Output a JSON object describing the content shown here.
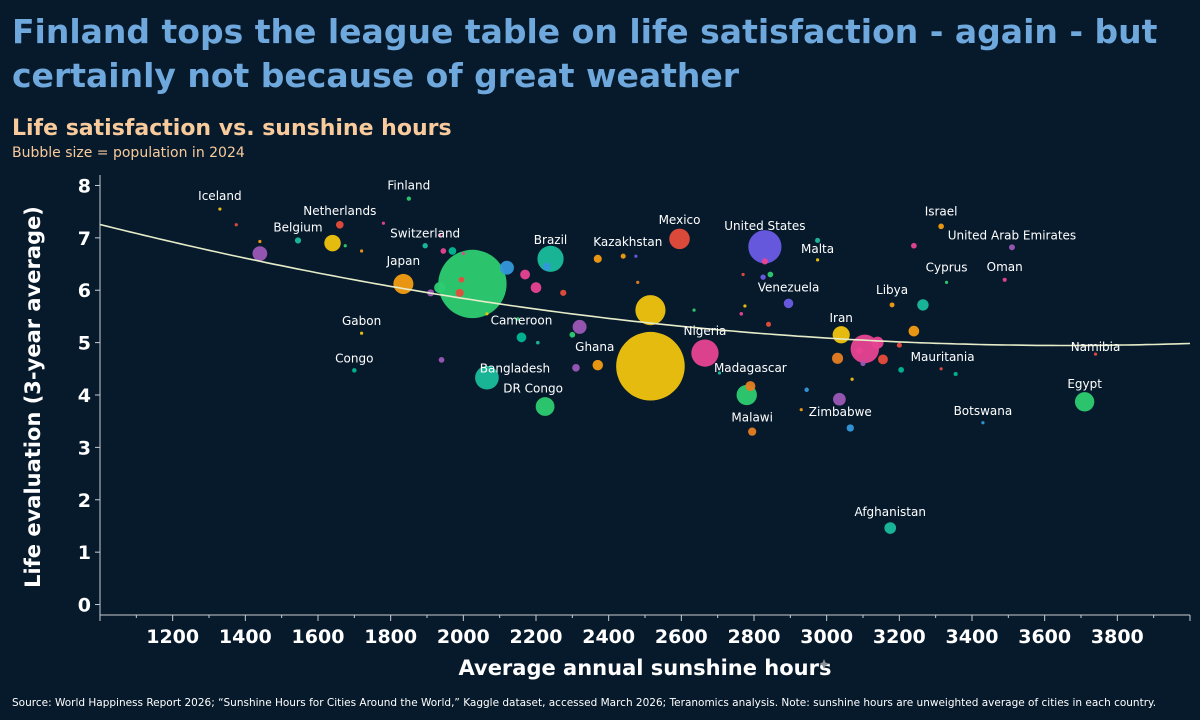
{
  "header": {
    "title": "Finland tops the league table on life satisfaction - again - but certainly not because of great weather",
    "subtitle": "Life satisfaction vs. sunshine hours",
    "note": "Bubble size = population in 2024"
  },
  "footer": {
    "source": "Source: World Happiness Report 2026; “Sunshine Hours for Cities Around the World,” Kaggle dataset, accessed March 2026; Teranomics analysis. Note: sunshine hours are unweighted average of cities in each country."
  },
  "chart_data": {
    "type": "scatter",
    "title": "Life satisfaction vs. sunshine hours",
    "xlabel": "Average annual sunshine hours",
    "ylabel": "Life evaluation (3-year average)",
    "xlim": [
      1000,
      4000
    ],
    "ylim": [
      -0.2,
      8.2
    ],
    "xticks": [
      1200,
      1400,
      1600,
      1800,
      2000,
      2200,
      2400,
      2600,
      2800,
      3000,
      3200,
      3400,
      3600,
      3800
    ],
    "yticks": [
      0,
      1,
      2,
      3,
      4,
      5,
      6,
      7,
      8
    ],
    "trendline": {
      "type": "quadratic",
      "a": 3.27e-07,
      "b": -0.002392,
      "c": 9.32
    },
    "colors": [
      "#e74c3c",
      "#2ecc71",
      "#9b59b6",
      "#f39c12",
      "#1abc9c",
      "#e84393",
      "#3498db",
      "#f1c40f",
      "#6c5ce7",
      "#00b894",
      "#fd79a8",
      "#e67e22"
    ],
    "points": [
      {
        "name": "Iceland",
        "x": 1330,
        "y": 7.55,
        "pop": 0.4,
        "color": "#f1c40f"
      },
      {
        "name": "Finland",
        "x": 1850,
        "y": 7.75,
        "pop": 5.6,
        "color": "#2ecc71"
      },
      {
        "name": "Netherlands",
        "x": 1660,
        "y": 7.25,
        "pop": 17.9,
        "color": "#e74c3c"
      },
      {
        "name": "Belgium",
        "x": 1545,
        "y": 6.95,
        "pop": 11.8,
        "color": "#1abc9c"
      },
      {
        "name": "Switzerland",
        "x": 1895,
        "y": 6.85,
        "pop": 8.9,
        "color": "#1abc9c"
      },
      {
        "name": "Brazil",
        "x": 2240,
        "y": 6.6,
        "pop": 212,
        "color": "#1abc9c"
      },
      {
        "name": "Kazakhstan",
        "x": 2370,
        "y": 6.6,
        "pop": 20,
        "color": "#f39c12"
      },
      {
        "name": "Mexico",
        "x": 2595,
        "y": 6.98,
        "pop": 130,
        "color": "#e74c3c"
      },
      {
        "name": "United States",
        "x": 2830,
        "y": 6.83,
        "pop": 340,
        "color": "#6c5ce7"
      },
      {
        "name": "Israel",
        "x": 3315,
        "y": 7.22,
        "pop": 9.8,
        "color": "#f39c12"
      },
      {
        "name": "United Arab Emirates",
        "x": 3510,
        "y": 6.82,
        "pop": 10.9,
        "color": "#9b59b6"
      },
      {
        "name": "Malta",
        "x": 2975,
        "y": 6.58,
        "pop": 0.55,
        "color": "#f1c40f"
      },
      {
        "name": "Oman",
        "x": 3490,
        "y": 6.2,
        "pop": 5.3,
        "color": "#e84393"
      },
      {
        "name": "Cyprus",
        "x": 3330,
        "y": 6.15,
        "pop": 1.3,
        "color": "#2ecc71"
      },
      {
        "name": "Japan",
        "x": 1835,
        "y": 6.12,
        "pop": 124,
        "color": "#f39c12"
      },
      {
        "name": "Venezuela",
        "x": 2895,
        "y": 5.75,
        "pop": 28,
        "color": "#6c5ce7"
      },
      {
        "name": "Libya",
        "x": 3180,
        "y": 5.72,
        "pop": 7.4,
        "color": "#f39c12"
      },
      {
        "name": "Gabon",
        "x": 1720,
        "y": 5.18,
        "pop": 2.5,
        "color": "#f1c40f"
      },
      {
        "name": "Cameroon",
        "x": 2160,
        "y": 5.1,
        "pop": 29,
        "color": "#00b894"
      },
      {
        "name": "Iran",
        "x": 3040,
        "y": 5.15,
        "pop": 91,
        "color": "#f1c40f"
      },
      {
        "name": "Nigeria",
        "x": 2665,
        "y": 4.8,
        "pop": 229,
        "color": "#e84393"
      },
      {
        "name": "Congo",
        "x": 1700,
        "y": 4.47,
        "pop": 6.2,
        "color": "#00b894"
      },
      {
        "name": "Bangladesh",
        "x": 2065,
        "y": 4.33,
        "pop": 173,
        "color": "#1abc9c"
      },
      {
        "name": "Ghana",
        "x": 2370,
        "y": 4.57,
        "pop": 34,
        "color": "#f39c12"
      },
      {
        "name": "Mauritania",
        "x": 3355,
        "y": 4.4,
        "pop": 5.2,
        "color": "#00b894"
      },
      {
        "name": "Madagascar",
        "x": 2790,
        "y": 4.17,
        "pop": 31,
        "color": "#e67e22"
      },
      {
        "name": "Egypt",
        "x": 3710,
        "y": 3.87,
        "pop": 116,
        "color": "#2ecc71"
      },
      {
        "name": "Namibia",
        "x": 3740,
        "y": 4.78,
        "pop": 3.0,
        "color": "#e74c3c"
      },
      {
        "name": "DR Congo",
        "x": 2225,
        "y": 3.78,
        "pop": 109,
        "color": "#2ecc71"
      },
      {
        "name": "Malawi",
        "x": 2795,
        "y": 3.3,
        "pop": 21,
        "color": "#e67e22"
      },
      {
        "name": "Zimbabwe",
        "x": 3065,
        "y": 3.37,
        "pop": 16.6,
        "color": "#3498db"
      },
      {
        "name": "Botswana",
        "x": 3430,
        "y": 3.47,
        "pop": 2.5,
        "color": "#3498db"
      },
      {
        "name": "Afghanistan",
        "x": 3175,
        "y": 1.46,
        "pop": 42,
        "color": "#1abc9c"
      },
      {
        "name": "",
        "x": 2025,
        "y": 6.12,
        "pop": 1441,
        "color": "#2ecc71"
      },
      {
        "name": "",
        "x": 2515,
        "y": 4.55,
        "pop": 1451,
        "color": "#f1c40f"
      },
      {
        "name": "",
        "x": 2515,
        "y": 5.62,
        "pop": 280,
        "color": "#f1c40f"
      },
      {
        "name": "",
        "x": 3105,
        "y": 4.88,
        "pop": 250,
        "color": "#e84393"
      },
      {
        "name": "",
        "x": 2780,
        "y": 4.0,
        "pop": 128,
        "color": "#2ecc71"
      },
      {
        "name": "",
        "x": 1440,
        "y": 6.7,
        "pop": 67,
        "color": "#9b59b6"
      },
      {
        "name": "",
        "x": 1640,
        "y": 6.9,
        "pop": 84,
        "color": "#f1c40f"
      },
      {
        "name": "",
        "x": 2120,
        "y": 6.43,
        "pop": 60,
        "color": "#3498db"
      },
      {
        "name": "",
        "x": 2320,
        "y": 5.3,
        "pop": 60,
        "color": "#9b59b6"
      },
      {
        "name": "",
        "x": 3035,
        "y": 3.92,
        "pop": 50,
        "color": "#9b59b6"
      },
      {
        "name": "",
        "x": 3265,
        "y": 5.72,
        "pop": 40,
        "color": "#1abc9c"
      },
      {
        "name": "",
        "x": 3240,
        "y": 5.22,
        "pop": 35,
        "color": "#f39c12"
      },
      {
        "name": "",
        "x": 3140,
        "y": 5.0,
        "pop": 45,
        "color": "#e84393"
      },
      {
        "name": "",
        "x": 3030,
        "y": 4.7,
        "pop": 38,
        "color": "#e67e22"
      },
      {
        "name": "",
        "x": 3155,
        "y": 4.68,
        "pop": 30,
        "color": "#e74c3c"
      },
      {
        "name": "",
        "x": 2200,
        "y": 6.05,
        "pop": 35,
        "color": "#e84393"
      },
      {
        "name": "",
        "x": 2170,
        "y": 6.3,
        "pop": 30,
        "color": "#e84393"
      },
      {
        "name": "",
        "x": 1935,
        "y": 6.05,
        "pop": 38,
        "color": "#2ecc71"
      },
      {
        "name": "",
        "x": 1970,
        "y": 6.75,
        "pop": 18,
        "color": "#00b894"
      },
      {
        "name": "",
        "x": 1990,
        "y": 5.95,
        "pop": 20,
        "color": "#e74c3c"
      },
      {
        "name": "",
        "x": 1910,
        "y": 5.95,
        "pop": 15,
        "color": "#9b59b6"
      },
      {
        "name": "",
        "x": 1995,
        "y": 6.2,
        "pop": 10,
        "color": "#e74c3c"
      },
      {
        "name": "",
        "x": 1945,
        "y": 6.75,
        "pop": 10,
        "color": "#e84393"
      },
      {
        "name": "",
        "x": 2230,
        "y": 6.45,
        "pop": 20,
        "color": "#3498db"
      },
      {
        "name": "",
        "x": 2275,
        "y": 5.95,
        "pop": 12,
        "color": "#e74c3c"
      },
      {
        "name": "",
        "x": 2440,
        "y": 6.65,
        "pop": 8,
        "color": "#f39c12"
      },
      {
        "name": "",
        "x": 2310,
        "y": 4.52,
        "pop": 18,
        "color": "#9b59b6"
      },
      {
        "name": "",
        "x": 1940,
        "y": 4.67,
        "pop": 10,
        "color": "#9b59b6"
      },
      {
        "name": "",
        "x": 2300,
        "y": 5.15,
        "pop": 10,
        "color": "#2ecc71"
      },
      {
        "name": "",
        "x": 2830,
        "y": 6.55,
        "pop": 12,
        "color": "#e84393"
      },
      {
        "name": "",
        "x": 2975,
        "y": 6.95,
        "pop": 8,
        "color": "#1abc9c"
      },
      {
        "name": "",
        "x": 2845,
        "y": 6.3,
        "pop": 10,
        "color": "#2ecc71"
      },
      {
        "name": "",
        "x": 2825,
        "y": 6.25,
        "pop": 9,
        "color": "#6c5ce7"
      },
      {
        "name": "",
        "x": 3240,
        "y": 6.85,
        "pop": 10,
        "color": "#e84393"
      },
      {
        "name": "",
        "x": 2840,
        "y": 5.35,
        "pop": 8,
        "color": "#e74c3c"
      },
      {
        "name": "",
        "x": 3200,
        "y": 4.95,
        "pop": 8,
        "color": "#e74c3c"
      },
      {
        "name": "",
        "x": 3205,
        "y": 4.48,
        "pop": 10,
        "color": "#00b894"
      },
      {
        "name": "",
        "x": 3090,
        "y": 4.85,
        "pop": 15,
        "color": "#e84393"
      },
      {
        "name": "",
        "x": 3100,
        "y": 4.6,
        "pop": 8,
        "color": "#9b59b6"
      },
      {
        "name": "",
        "x": 2945,
        "y": 4.1,
        "pop": 6,
        "color": "#3498db"
      },
      {
        "name": "",
        "x": 2705,
        "y": 4.42,
        "pop": 3,
        "color": "#1abc9c"
      },
      {
        "name": "",
        "x": 2150,
        "y": 5.45,
        "pop": 4,
        "color": "#2ecc71"
      },
      {
        "name": "",
        "x": 2205,
        "y": 5.0,
        "pop": 4,
        "color": "#1abc9c"
      },
      {
        "name": "",
        "x": 1780,
        "y": 7.28,
        "pop": 3,
        "color": "#e84393"
      },
      {
        "name": "",
        "x": 1720,
        "y": 6.75,
        "pop": 2,
        "color": "#f39c12"
      },
      {
        "name": "",
        "x": 1675,
        "y": 6.85,
        "pop": 3,
        "color": "#2ecc71"
      },
      {
        "name": "",
        "x": 1375,
        "y": 7.25,
        "pop": 2,
        "color": "#e74c3c"
      },
      {
        "name": "",
        "x": 1440,
        "y": 6.93,
        "pop": 2,
        "color": "#f39c12"
      },
      {
        "name": "",
        "x": 1935,
        "y": 7.05,
        "pop": 3,
        "color": "#e84393"
      },
      {
        "name": "",
        "x": 2770,
        "y": 6.3,
        "pop": 2,
        "color": "#e74c3c"
      },
      {
        "name": "",
        "x": 2775,
        "y": 5.7,
        "pop": 3,
        "color": "#f1c40f"
      },
      {
        "name": "",
        "x": 2765,
        "y": 5.55,
        "pop": 4,
        "color": "#e84393"
      },
      {
        "name": "",
        "x": 2930,
        "y": 3.72,
        "pop": 2,
        "color": "#f39c12"
      },
      {
        "name": "",
        "x": 3070,
        "y": 4.3,
        "pop": 1,
        "color": "#f1c40f"
      },
      {
        "name": "",
        "x": 3315,
        "y": 4.5,
        "pop": 2,
        "color": "#e74c3c"
      },
      {
        "name": "",
        "x": 2480,
        "y": 6.15,
        "pop": 2,
        "color": "#e67e22"
      },
      {
        "name": "",
        "x": 2635,
        "y": 5.62,
        "pop": 2,
        "color": "#2ecc71"
      },
      {
        "name": "",
        "x": 2065,
        "y": 5.55,
        "pop": 2,
        "color": "#f1c40f"
      },
      {
        "name": "",
        "x": 2000,
        "y": 6.7,
        "pop": 2,
        "color": "#e84393"
      },
      {
        "name": "",
        "x": 2475,
        "y": 6.65,
        "pop": 3,
        "color": "#6c5ce7"
      }
    ]
  }
}
